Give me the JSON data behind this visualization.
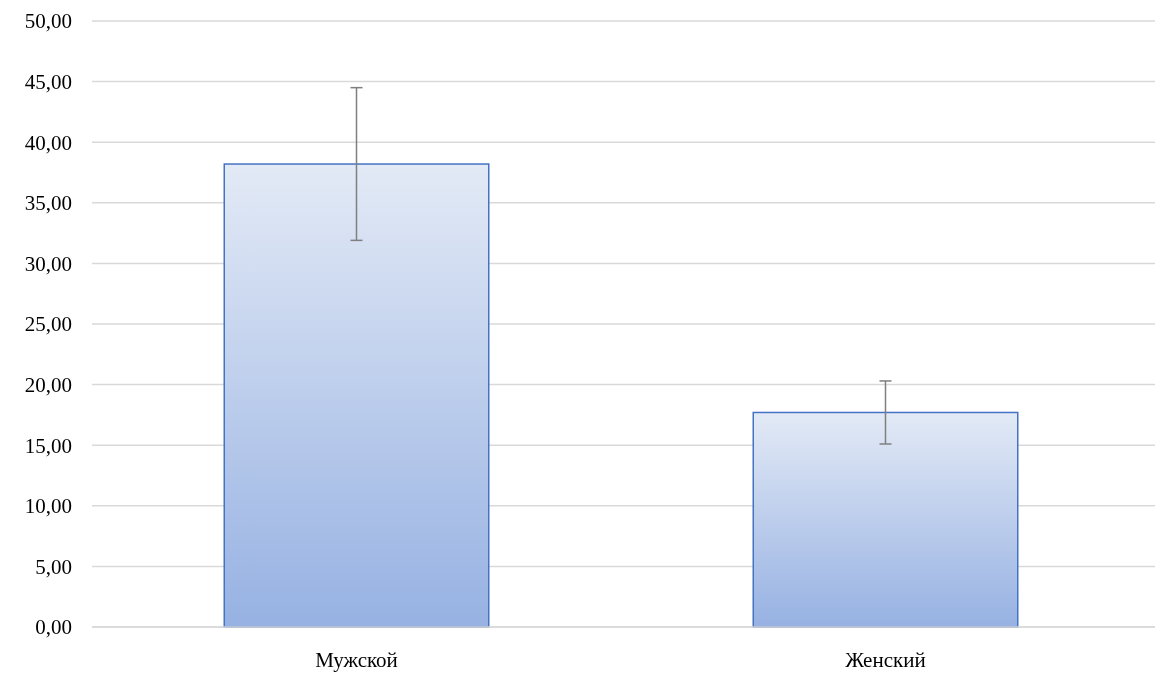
{
  "chart_data": {
    "type": "bar",
    "categories": [
      "Мужской",
      "Женский"
    ],
    "values": [
      38.2,
      17.7
    ],
    "errors": [
      6.3,
      2.6
    ],
    "color": "#4472c4",
    "ylim": [
      0,
      50
    ],
    "yticks": [
      {
        "value": 0,
        "label": "0,00"
      },
      {
        "value": 5,
        "label": "5,00"
      },
      {
        "value": 10,
        "label": "10,00"
      },
      {
        "value": 15,
        "label": "15,00"
      },
      {
        "value": 20,
        "label": "20,00"
      },
      {
        "value": 25,
        "label": "25,00"
      },
      {
        "value": 30,
        "label": "30,00"
      },
      {
        "value": 35,
        "label": "35,00"
      },
      {
        "value": 40,
        "label": "40,00"
      },
      {
        "value": 45,
        "label": "45,00"
      },
      {
        "value": 50,
        "label": "50,00"
      }
    ],
    "grid": "y"
  }
}
